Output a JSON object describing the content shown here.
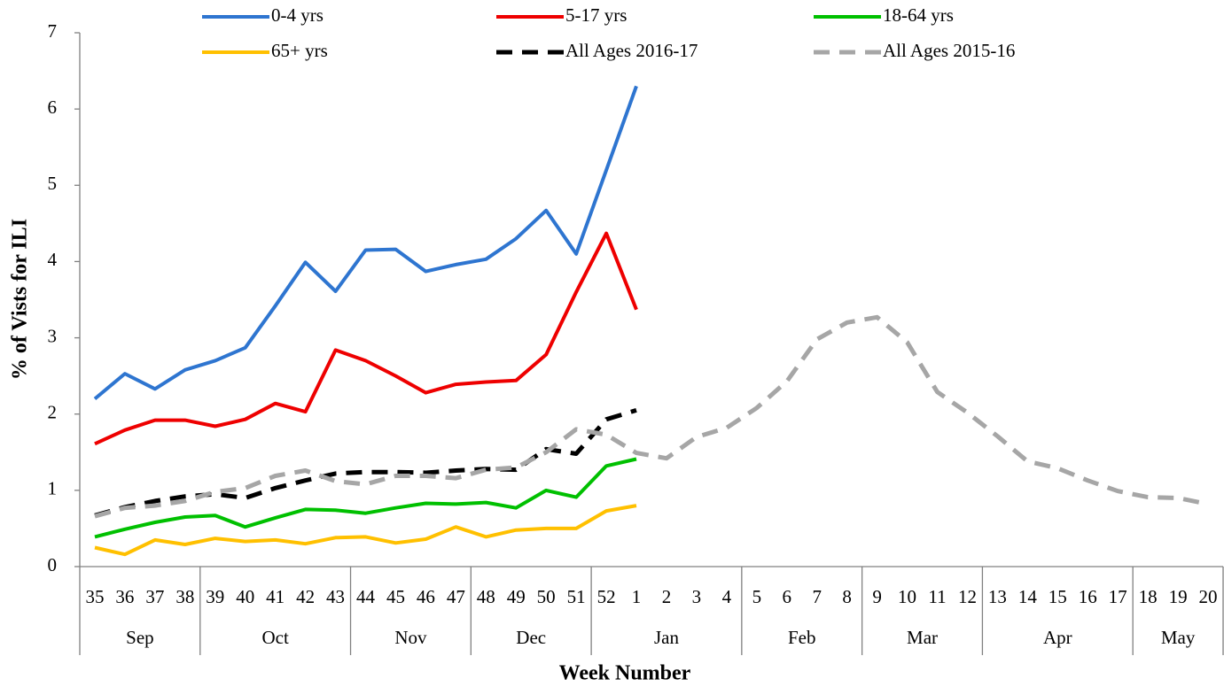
{
  "chart_data": {
    "type": "line",
    "x_label": "Week Number",
    "y_label": "% of Vists for ILI",
    "categories": [
      "35",
      "36",
      "37",
      "38",
      "39",
      "40",
      "41",
      "42",
      "43",
      "44",
      "45",
      "46",
      "47",
      "48",
      "49",
      "50",
      "51",
      "52",
      "1",
      "2",
      "3",
      "4",
      "5",
      "6",
      "7",
      "8",
      "9",
      "10",
      "11",
      "12",
      "13",
      "14",
      "15",
      "16",
      "17",
      "18",
      "19",
      "20"
    ],
    "month_groups": [
      {
        "label": "Sep",
        "count": 4
      },
      {
        "label": "Oct",
        "count": 5
      },
      {
        "label": "Nov",
        "count": 4
      },
      {
        "label": "Dec",
        "count": 4
      },
      {
        "label": "Jan",
        "count": 5
      },
      {
        "label": "Feb",
        "count": 4
      },
      {
        "label": "Mar",
        "count": 4
      },
      {
        "label": "Apr",
        "count": 5
      },
      {
        "label": "May",
        "count": 3
      }
    ],
    "ylim": [
      0,
      7
    ],
    "yticks": [
      0,
      1,
      2,
      3,
      4,
      5,
      6,
      7
    ],
    "grid": false,
    "series": [
      {
        "name": "0-4 yrs",
        "color": "#2e75d0",
        "dashed": false,
        "values": [
          2.2,
          2.53,
          2.33,
          2.58,
          2.7,
          2.87,
          3.42,
          3.99,
          3.61,
          4.15,
          4.16,
          3.87,
          3.96,
          4.03,
          4.3,
          4.67,
          4.1,
          5.2,
          6.3,
          null,
          null,
          null,
          null,
          null,
          null,
          null,
          null,
          null,
          null,
          null,
          null,
          null,
          null,
          null,
          null,
          null,
          null,
          null
        ]
      },
      {
        "name": "5-17 yrs",
        "color": "#ee0000",
        "dashed": false,
        "values": [
          1.61,
          1.79,
          1.92,
          1.92,
          1.84,
          1.93,
          2.14,
          2.03,
          2.84,
          2.7,
          2.5,
          2.28,
          2.39,
          2.42,
          2.44,
          2.78,
          3.6,
          4.37,
          3.37,
          null,
          null,
          null,
          null,
          null,
          null,
          null,
          null,
          null,
          null,
          null,
          null,
          null,
          null,
          null,
          null,
          null,
          null,
          null
        ]
      },
      {
        "name": "18-64 yrs",
        "color": "#00c000",
        "dashed": false,
        "values": [
          0.39,
          0.49,
          0.58,
          0.65,
          0.67,
          0.52,
          0.64,
          0.75,
          0.74,
          0.7,
          0.77,
          0.83,
          0.82,
          0.84,
          0.77,
          1.0,
          0.91,
          1.32,
          1.41,
          null,
          null,
          null,
          null,
          null,
          null,
          null,
          null,
          null,
          null,
          null,
          null,
          null,
          null,
          null,
          null,
          null,
          null,
          null
        ]
      },
      {
        "name": "65+ yrs",
        "color": "#ffc000",
        "dashed": false,
        "values": [
          0.25,
          0.16,
          0.35,
          0.29,
          0.37,
          0.33,
          0.35,
          0.3,
          0.38,
          0.39,
          0.31,
          0.36,
          0.52,
          0.39,
          0.48,
          0.5,
          0.5,
          0.73,
          0.8,
          null,
          null,
          null,
          null,
          null,
          null,
          null,
          null,
          null,
          null,
          null,
          null,
          null,
          null,
          null,
          null,
          null,
          null,
          null
        ]
      },
      {
        "name": "All Ages 2016-17",
        "color": "#000000",
        "dashed": true,
        "values": [
          0.67,
          0.78,
          0.86,
          0.92,
          0.95,
          0.9,
          1.03,
          1.13,
          1.22,
          1.24,
          1.24,
          1.23,
          1.26,
          1.28,
          1.27,
          1.54,
          1.48,
          1.93,
          2.05,
          null,
          null,
          null,
          null,
          null,
          null,
          null,
          null,
          null,
          null,
          null,
          null,
          null,
          null,
          null,
          null,
          null,
          null,
          null
        ]
      },
      {
        "name": "All Ages 2015-16",
        "color": "#a6a6a6",
        "dashed": true,
        "values": [
          0.66,
          0.77,
          0.8,
          0.86,
          0.98,
          1.03,
          1.19,
          1.26,
          1.12,
          1.08,
          1.19,
          1.19,
          1.16,
          1.27,
          1.3,
          1.5,
          1.8,
          1.73,
          1.49,
          1.42,
          1.7,
          1.82,
          2.08,
          2.43,
          2.98,
          3.2,
          3.27,
          2.94,
          2.29,
          2.02,
          1.71,
          1.38,
          1.29,
          1.13,
          0.99,
          0.91,
          0.9,
          0.82
        ]
      }
    ]
  }
}
